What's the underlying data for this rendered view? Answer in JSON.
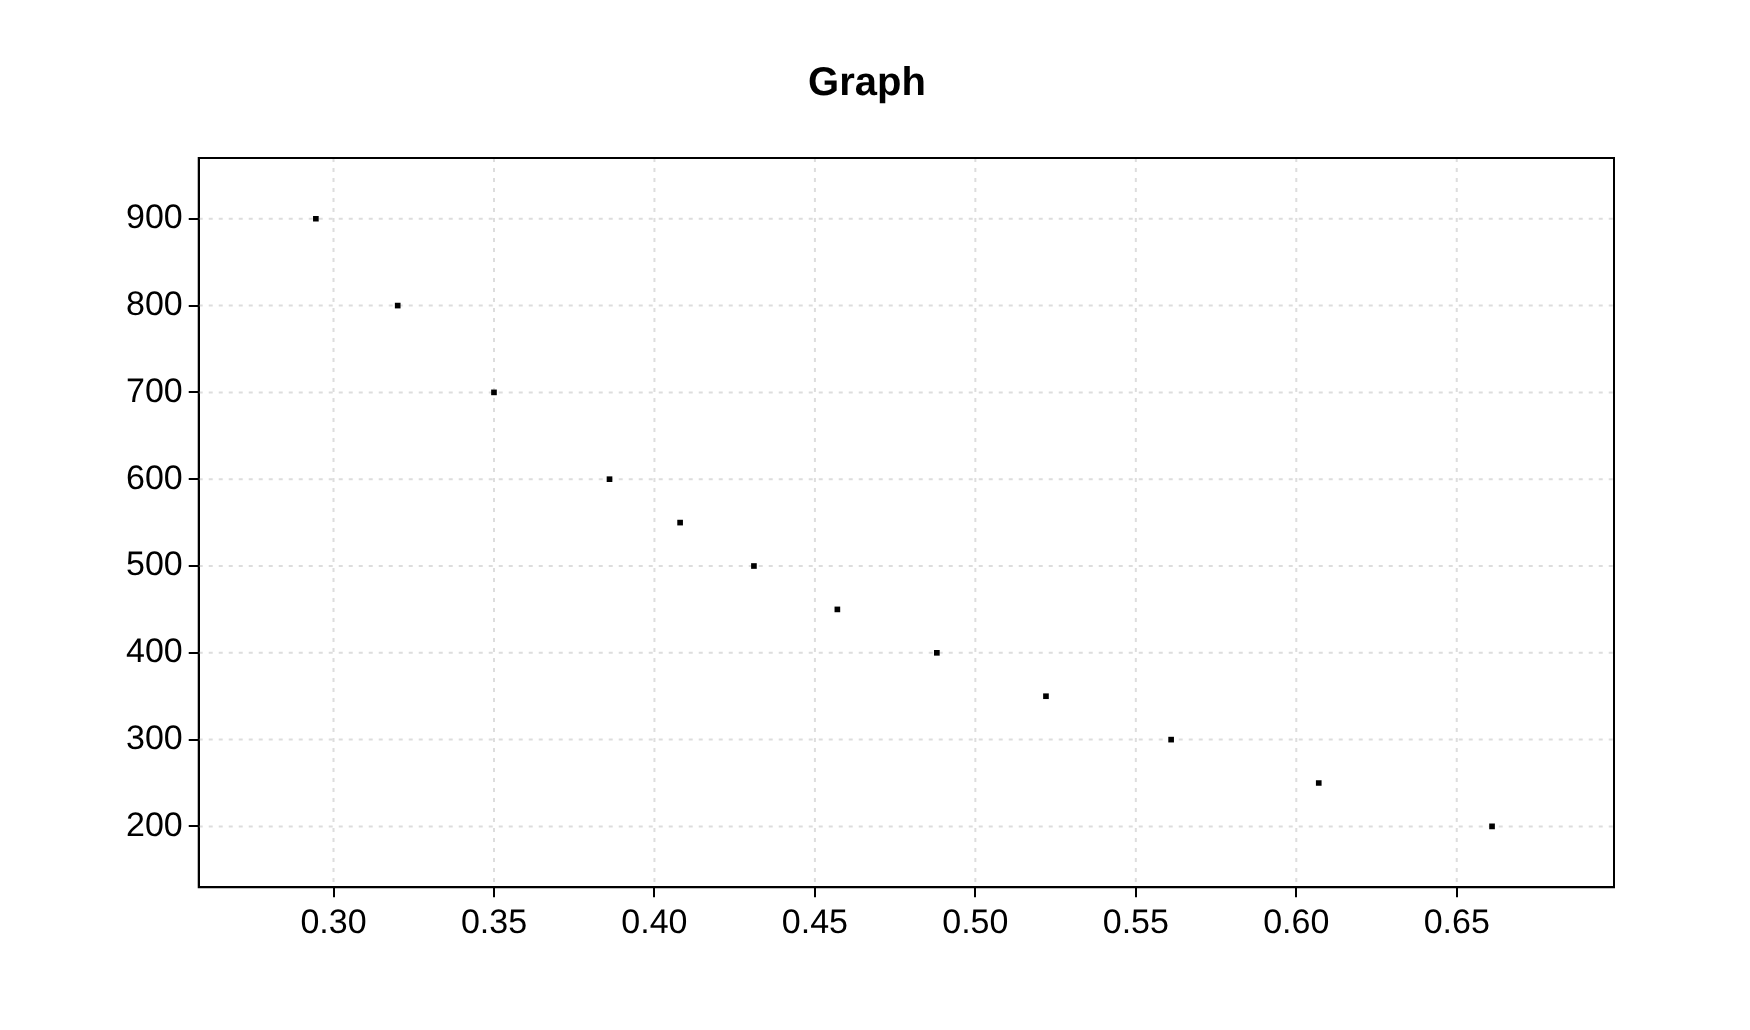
{
  "chart_data": {
    "type": "scatter",
    "title": "Graph",
    "x": [
      0.2945,
      0.32,
      0.35,
      0.386,
      0.408,
      0.431,
      0.457,
      0.488,
      0.522,
      0.561,
      0.607,
      0.661
    ],
    "series": [
      {
        "color": "#000000",
        "values": [
          900,
          800,
          700,
          600,
          550,
          500,
          450,
          400,
          350,
          300,
          250,
          200
        ]
      }
    ],
    "xlim": [
      0.258,
      0.699
    ],
    "ylim": [
      130,
      970
    ],
    "xticks": [
      {
        "value": 0.3,
        "label": "0.30"
      },
      {
        "value": 0.35,
        "label": "0.35"
      },
      {
        "value": 0.4,
        "label": "0.40"
      },
      {
        "value": 0.45,
        "label": "0.45"
      },
      {
        "value": 0.5,
        "label": "0.50"
      },
      {
        "value": 0.55,
        "label": "0.55"
      },
      {
        "value": 0.6,
        "label": "0.60"
      },
      {
        "value": 0.65,
        "label": "0.65"
      }
    ],
    "yticks": [
      200,
      300,
      400,
      500,
      600,
      700,
      800,
      900
    ],
    "grid": true,
    "legend": false,
    "marker": "square"
  }
}
